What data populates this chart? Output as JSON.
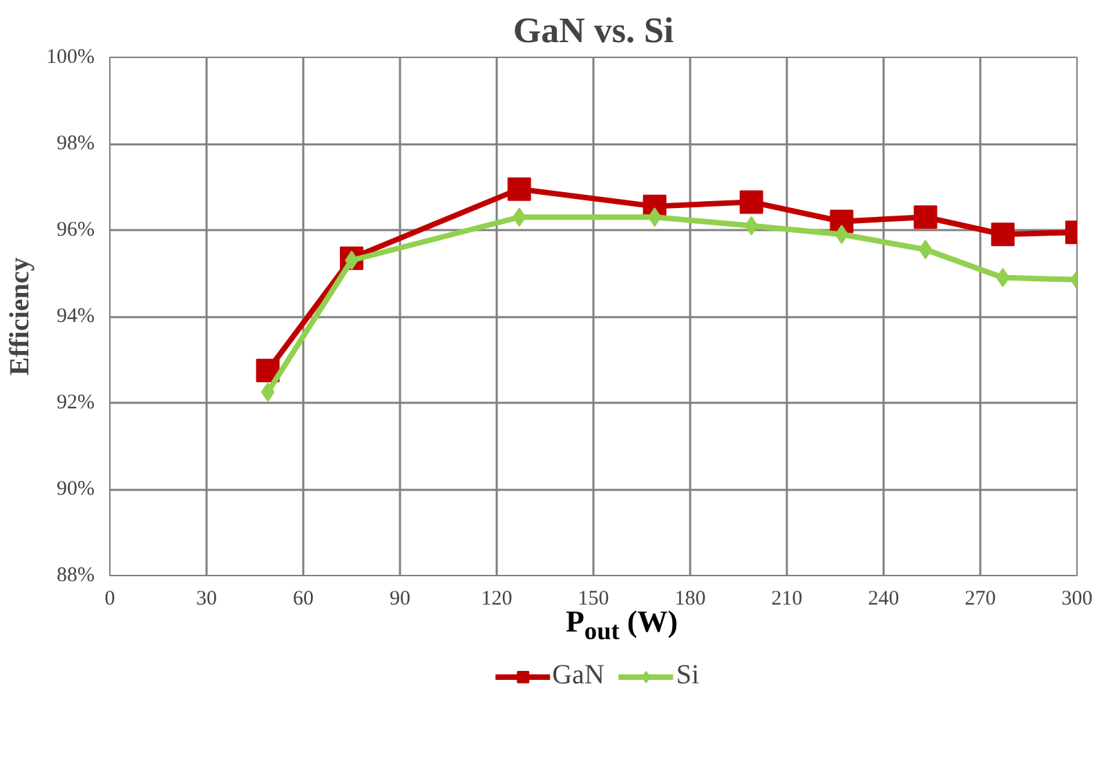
{
  "chart_data": {
    "type": "line",
    "title": "GaN vs. Si",
    "xlabel": "P$_{out}$ (W)",
    "ylabel": "Efficiency",
    "xlim": [
      0,
      300
    ],
    "xticks": [
      0,
      30,
      60,
      90,
      120,
      150,
      180,
      210,
      240,
      270,
      300
    ],
    "ylim": [
      88,
      100
    ],
    "yticks": [
      {
        "value": 88,
        "label": "88%"
      },
      {
        "value": 90,
        "label": "90%"
      },
      {
        "value": 92,
        "label": "92%"
      },
      {
        "value": 94,
        "label": "94%"
      },
      {
        "value": 96,
        "label": "96%"
      },
      {
        "value": 98,
        "label": "98%"
      },
      {
        "value": 100,
        "label": "100%"
      }
    ],
    "grid": true,
    "legend": "bottom",
    "series": [
      {
        "name": "GaN",
        "color": "#c00000",
        "marker": "square",
        "x": [
          49,
          75,
          127,
          169,
          199,
          227,
          253,
          277,
          300
        ],
        "values": [
          92.75,
          95.35,
          96.95,
          96.55,
          96.65,
          96.2,
          96.3,
          95.9,
          95.95
        ]
      },
      {
        "name": "Si",
        "color": "#92d050",
        "marker": "diamond",
        "x": [
          49,
          75,
          127,
          169,
          199,
          227,
          253,
          277,
          300
        ],
        "values": [
          92.25,
          95.3,
          96.3,
          96.3,
          96.1,
          95.9,
          95.55,
          94.9,
          94.85
        ]
      }
    ]
  }
}
